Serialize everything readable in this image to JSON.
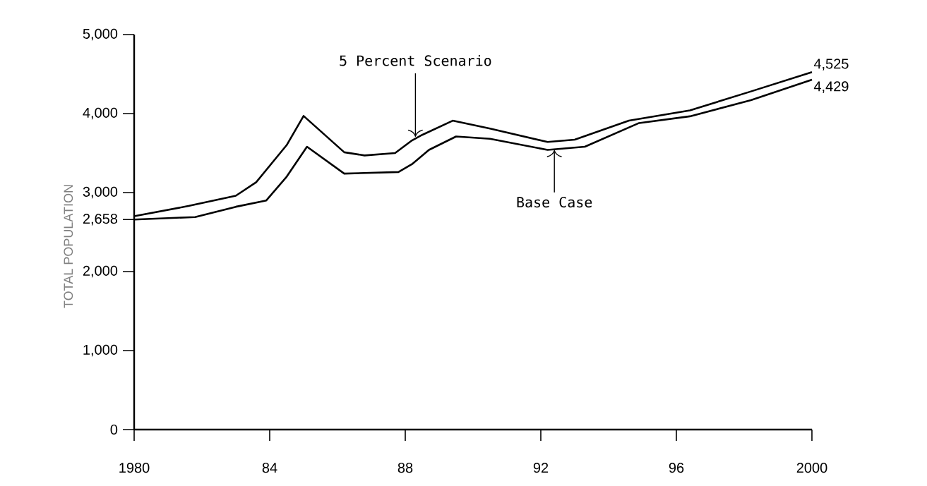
{
  "chart_data": {
    "type": "line",
    "ylabel": "TOTAL POPULATION",
    "x": [
      1980,
      1981.8,
      1983,
      1983.9,
      1984.5,
      1985.1,
      1986.2,
      1987.8,
      1988.2,
      1988.7,
      1989.5,
      1990.5,
      1992.2,
      1993.3,
      1994.9,
      1996.4,
      1998.2,
      2000
    ],
    "series": [
      {
        "color": "#000000",
        "x": [
          1980,
          1981.6,
          1983,
          1983.6,
          1984.5,
          1985,
          1986.2,
          1986.8,
          1987.7,
          1988.2,
          1988.5,
          1989.4,
          1990.5,
          1992.2,
          1993,
          1994.6,
          1996.4,
          1998.2,
          2000
        ],
        "values": [
          2700,
          2830,
          2960,
          3130,
          3600,
          3970,
          3510,
          3470,
          3500,
          3660,
          3730,
          3910,
          3810,
          3640,
          3670,
          3910,
          4040,
          4280,
          4525
        ],
        "value_labels": [
          null,
          null,
          null,
          null,
          null,
          null,
          null,
          null,
          null,
          null,
          null,
          null,
          null,
          null,
          null,
          null,
          null,
          null,
          "4,525"
        ]
      },
      {
        "color": "#000000",
        "values": [
          2658,
          2690,
          2820,
          2900,
          3200,
          3580,
          3240,
          3260,
          3360,
          3540,
          3710,
          3680,
          3540,
          3580,
          3880,
          3965,
          4170,
          4429
        ],
        "value_labels": [
          null,
          null,
          null,
          null,
          null,
          null,
          null,
          null,
          null,
          null,
          null,
          null,
          null,
          null,
          null,
          null,
          null,
          "4,429"
        ]
      }
    ],
    "xlim": [
      1980,
      2000
    ],
    "xticks": [
      1980,
      {
        "value": 1984,
        "label": "84"
      },
      {
        "value": 1988,
        "label": "88"
      },
      {
        "value": 1992,
        "label": "92"
      },
      {
        "value": 1996,
        "label": "96"
      },
      2000
    ],
    "ylim": [
      0,
      5000
    ],
    "yticks": [
      {
        "value": 0,
        "label": "0"
      },
      {
        "value": 1000,
        "label": "1,000"
      },
      {
        "value": 2000,
        "label": "2,000"
      },
      {
        "value": 2658,
        "label": "2,658"
      },
      {
        "value": 3000,
        "label": "3,000"
      },
      {
        "value": 4000,
        "label": "4,000"
      },
      {
        "value": 5000,
        "label": "5,000"
      }
    ],
    "annotations": [
      {
        "text": "5 Percent Scenario",
        "x": 1988.3,
        "y": 3700
      },
      {
        "text": "Base Case",
        "x": 1992.4,
        "y": 3545
      }
    ],
    "grid": false,
    "marker": "none",
    "line_style": "solid"
  }
}
